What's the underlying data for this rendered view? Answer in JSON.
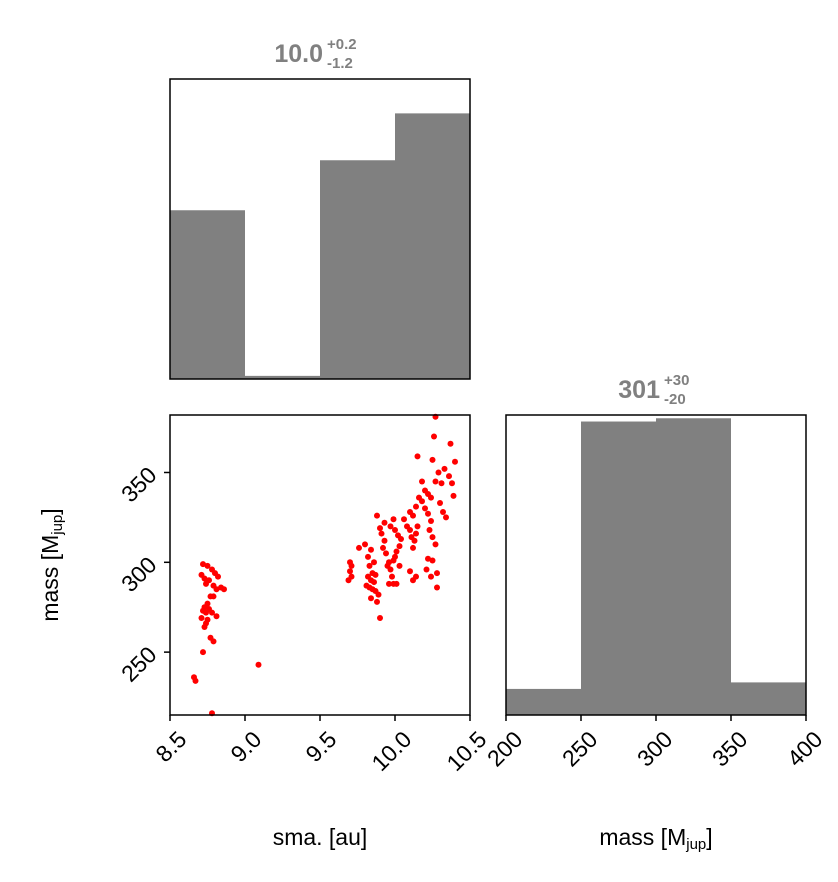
{
  "chart_data": [
    {
      "panel": "sma-histogram",
      "type": "histogram",
      "title": {
        "value": "10.0",
        "plus": "+0.2",
        "minus": "-1.2"
      },
      "color": "#808080",
      "bin_edges": [
        8.5,
        9.0,
        9.5,
        10.0,
        10.5
      ],
      "heights": [
        54,
        1,
        70,
        85
      ],
      "xlim": [
        8.5,
        10.5
      ],
      "ylim": [
        0,
        96
      ]
    },
    {
      "panel": "mass-histogram",
      "type": "histogram",
      "title": {
        "value": "301",
        "plus": "+30",
        "minus": "-20"
      },
      "color": "#808080",
      "bin_edges": [
        200,
        250,
        300,
        350,
        400
      ],
      "heights": [
        8,
        90,
        91,
        10
      ],
      "xlim": [
        200,
        400
      ],
      "ylim": [
        0,
        92
      ]
    },
    {
      "panel": "sma-mass-scatter",
      "type": "scatter",
      "color": "#ff0000",
      "xlabel": "sma. [au]",
      "ylabel": {
        "base": "mass [M",
        "sub": "jup",
        "end": "]"
      },
      "xlim": [
        8.5,
        10.5
      ],
      "ylim": [
        215,
        382
      ],
      "xticks": [
        8.5,
        9.0,
        9.5,
        10.0,
        10.5
      ],
      "xtick_labels": [
        "8.5",
        "9.0",
        "9.5",
        "10.0",
        "10.5"
      ],
      "yticks": [
        250,
        300,
        350
      ],
      "ytick_labels": [
        "250",
        "300",
        "350"
      ],
      "points": [
        [
          8.72,
          299
        ],
        [
          8.75,
          298
        ],
        [
          8.78,
          296
        ],
        [
          8.8,
          294
        ],
        [
          8.82,
          292
        ],
        [
          8.71,
          293
        ],
        [
          8.73,
          291
        ],
        [
          8.76,
          290
        ],
        [
          8.74,
          288
        ],
        [
          8.79,
          287
        ],
        [
          8.84,
          286
        ],
        [
          8.86,
          285
        ],
        [
          8.81,
          285
        ],
        [
          8.77,
          281
        ],
        [
          8.79,
          281
        ],
        [
          8.75,
          277
        ],
        [
          8.73,
          275
        ],
        [
          8.76,
          274
        ],
        [
          8.72,
          273
        ],
        [
          8.74,
          272
        ],
        [
          8.78,
          272
        ],
        [
          8.81,
          270
        ],
        [
          8.71,
          269
        ],
        [
          8.75,
          268
        ],
        [
          8.74,
          266
        ],
        [
          8.73,
          264
        ],
        [
          8.77,
          258
        ],
        [
          8.79,
          256
        ],
        [
          8.72,
          250
        ],
        [
          8.66,
          236
        ],
        [
          8.67,
          234
        ],
        [
          8.78,
          216
        ],
        [
          9.09,
          243
        ],
        [
          9.7,
          300
        ],
        [
          9.71,
          298
        ],
        [
          9.7,
          295
        ],
        [
          9.71,
          292
        ],
        [
          9.69,
          290
        ],
        [
          9.76,
          308
        ],
        [
          9.8,
          310
        ],
        [
          9.82,
          303
        ],
        [
          9.84,
          307
        ],
        [
          9.86,
          300
        ],
        [
          9.83,
          298
        ],
        [
          9.85,
          294
        ],
        [
          9.87,
          293
        ],
        [
          9.82,
          292
        ],
        [
          9.84,
          290
        ],
        [
          9.86,
          289
        ],
        [
          9.81,
          287
        ],
        [
          9.83,
          286
        ],
        [
          9.85,
          285
        ],
        [
          9.87,
          284
        ],
        [
          9.89,
          282
        ],
        [
          9.84,
          280
        ],
        [
          9.88,
          278
        ],
        [
          9.9,
          269
        ],
        [
          9.9,
          319
        ],
        [
          9.91,
          316
        ],
        [
          9.93,
          312
        ],
        [
          9.92,
          308
        ],
        [
          9.94,
          305
        ],
        [
          9.96,
          300
        ],
        [
          9.95,
          298
        ],
        [
          9.97,
          296
        ],
        [
          9.98,
          292
        ],
        [
          9.96,
          288
        ],
        [
          9.99,
          288
        ],
        [
          10.01,
          288
        ],
        [
          9.88,
          326
        ],
        [
          9.93,
          322
        ],
        [
          9.97,
          320
        ],
        [
          9.99,
          324
        ],
        [
          10.0,
          318
        ],
        [
          10.02,
          315
        ],
        [
          10.04,
          313
        ],
        [
          10.03,
          309
        ],
        [
          10.01,
          306
        ],
        [
          10.0,
          303
        ],
        [
          9.99,
          301
        ],
        [
          10.03,
          298
        ],
        [
          10.06,
          324
        ],
        [
          10.08,
          320
        ],
        [
          10.1,
          318
        ],
        [
          10.11,
          314
        ],
        [
          10.13,
          312
        ],
        [
          10.12,
          308
        ],
        [
          10.14,
          316
        ],
        [
          10.15,
          320
        ],
        [
          10.1,
          328
        ],
        [
          10.12,
          326
        ],
        [
          10.14,
          331
        ],
        [
          10.16,
          336
        ],
        [
          10.18,
          334
        ],
        [
          10.2,
          330
        ],
        [
          10.22,
          327
        ],
        [
          10.24,
          323
        ],
        [
          10.23,
          318
        ],
        [
          10.25,
          314
        ],
        [
          10.27,
          310
        ],
        [
          10.2,
          340
        ],
        [
          10.22,
          338
        ],
        [
          10.24,
          336
        ],
        [
          10.18,
          345
        ],
        [
          10.27,
          345
        ],
        [
          10.31,
          344
        ],
        [
          10.3,
          333
        ],
        [
          10.32,
          328
        ],
        [
          10.34,
          325
        ],
        [
          10.29,
          350
        ],
        [
          10.33,
          352
        ],
        [
          10.36,
          348
        ],
        [
          10.38,
          344
        ],
        [
          10.39,
          337
        ],
        [
          10.4,
          356
        ],
        [
          10.37,
          366
        ],
        [
          10.26,
          370
        ],
        [
          10.27,
          381
        ],
        [
          10.15,
          359
        ],
        [
          10.25,
          357
        ],
        [
          10.1,
          295
        ],
        [
          10.12,
          290
        ],
        [
          10.14,
          292
        ],
        [
          10.22,
          302
        ],
        [
          10.25,
          301
        ],
        [
          10.28,
          294
        ],
        [
          10.21,
          296
        ],
        [
          10.24,
          292
        ],
        [
          10.28,
          286
        ]
      ]
    },
    {
      "panel": "mass-axis",
      "xlabel": {
        "base": "mass [M",
        "sub": "jup",
        "end": "]"
      },
      "xticks": [
        200,
        250,
        300,
        350,
        400
      ],
      "xtick_labels": [
        "200",
        "250",
        "300",
        "350",
        "400"
      ]
    }
  ]
}
